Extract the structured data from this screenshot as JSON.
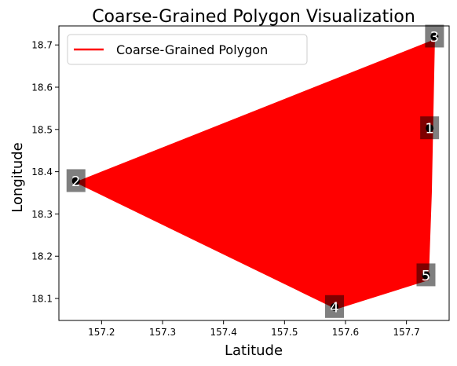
{
  "chart_data": {
    "type": "line",
    "title": "Coarse-Grained Polygon Visualization",
    "xlabel": "Latitude",
    "ylabel": "Longitude",
    "xlim": [
      157.13,
      157.77
    ],
    "ylim": [
      18.048,
      18.745
    ],
    "xticks": [
      157.2,
      157.3,
      157.4,
      157.5,
      157.6,
      157.7
    ],
    "yticks": [
      18.1,
      18.2,
      18.3,
      18.4,
      18.5,
      18.6,
      18.7
    ],
    "xtick_labels": [
      "157.2",
      "157.3",
      "157.4",
      "157.5",
      "157.6",
      "157.7"
    ],
    "ytick_labels": [
      "18.1",
      "18.2",
      "18.3",
      "18.4",
      "18.5",
      "18.6",
      "18.7"
    ],
    "grid": false,
    "legend": {
      "position": "top-left",
      "entries": [
        "Coarse-Grained Polygon"
      ]
    },
    "series": [
      {
        "name": "Coarse-Grained Polygon",
        "color": "#ff0000"
      }
    ],
    "polygon": [
      {
        "x": 157.745,
        "y": 18.71
      },
      {
        "x": 157.16,
        "y": 18.375
      },
      {
        "x": 157.585,
        "y": 18.077
      },
      {
        "x": 157.735,
        "y": 18.145
      },
      {
        "x": 157.74,
        "y": 18.35
      }
    ],
    "vertices": [
      {
        "label": "1",
        "x": 157.738,
        "y": 18.503
      },
      {
        "label": "2",
        "x": 157.158,
        "y": 18.378
      },
      {
        "label": "3",
        "x": 157.746,
        "y": 18.72
      },
      {
        "label": "4",
        "x": 157.582,
        "y": 18.08
      },
      {
        "label": "5",
        "x": 157.732,
        "y": 18.155
      }
    ]
  }
}
